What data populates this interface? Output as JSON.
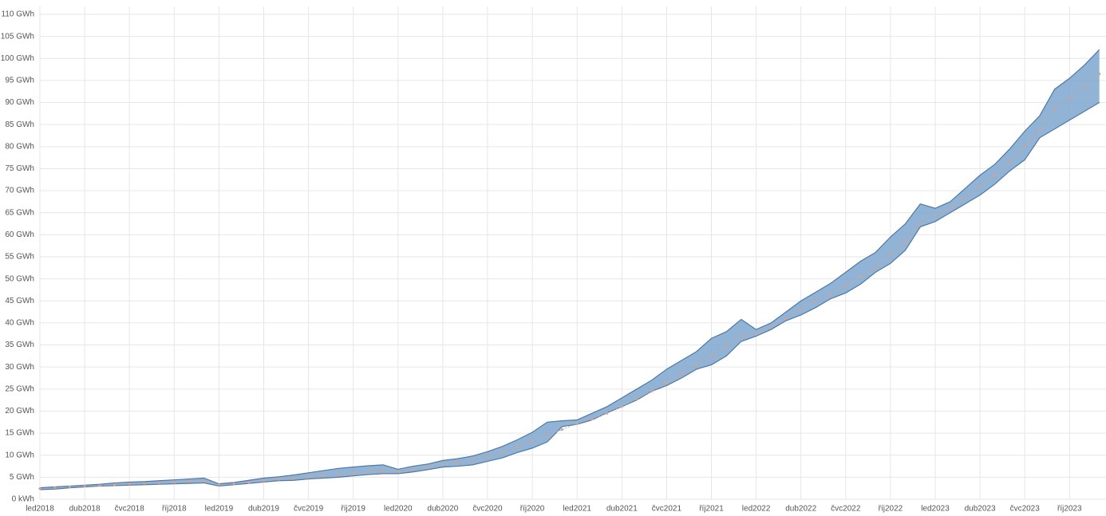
{
  "chart_data": {
    "type": "band",
    "categories": [
      "led2018",
      null,
      null,
      "dub2018",
      null,
      null,
      "čvc2018",
      null,
      null,
      "říj2018",
      null,
      null,
      "led2019",
      null,
      null,
      "dub2019",
      null,
      null,
      "čvc2019",
      null,
      null,
      "říj2019",
      null,
      null,
      "led2020",
      null,
      null,
      "dub2020",
      null,
      null,
      "čvc2020",
      null,
      null,
      "říj2020",
      null,
      null,
      "led2021",
      null,
      null,
      "dub2021",
      null,
      null,
      "čvc2021",
      null,
      null,
      "říj2021",
      null,
      null,
      "led2022",
      null,
      null,
      "dub2022",
      null,
      null,
      "čvc2022",
      null,
      null,
      "říj2022",
      null,
      null,
      "led2023",
      null,
      null,
      "dub2023",
      null,
      null,
      "čvc2023",
      null,
      null,
      "říj2023",
      null,
      null
    ],
    "band": {
      "color": "#7ea6cf",
      "edge_color": "#4f79a3",
      "upper": [
        2.6,
        2.8,
        3.0,
        3.2,
        3.4,
        3.7,
        3.9,
        4.0,
        4.2,
        4.4,
        4.6,
        4.8,
        3.5,
        3.8,
        4.3,
        4.8,
        5.1,
        5.5,
        6.0,
        6.5,
        7.0,
        7.3,
        7.6,
        7.8,
        6.8,
        7.5,
        8.0,
        8.8,
        9.2,
        9.8,
        10.8,
        12.0,
        13.5,
        15.2,
        17.5,
        17.8,
        18.0,
        19.5,
        21.0,
        23.0,
        25.0,
        27.0,
        29.5,
        31.5,
        33.5,
        36.5,
        38.0,
        40.8,
        38.5,
        40.0,
        42.5,
        45.0,
        47.0,
        49.0,
        51.5,
        54.0,
        56.0,
        59.5,
        62.5,
        67.0,
        66.0,
        67.5,
        70.5,
        73.5,
        76.0,
        79.5,
        83.5,
        87.0,
        93.0,
        95.5,
        98.5,
        102.0
      ],
      "lower": [
        2.2,
        2.3,
        2.6,
        2.8,
        3.0,
        3.1,
        3.2,
        3.3,
        3.4,
        3.5,
        3.6,
        3.7,
        3.0,
        3.3,
        3.6,
        3.9,
        4.2,
        4.3,
        4.6,
        4.8,
        5.0,
        5.3,
        5.6,
        5.8,
        5.8,
        6.2,
        6.7,
        7.3,
        7.5,
        7.8,
        8.6,
        9.4,
        10.6,
        11.6,
        13.0,
        16.5,
        17.0,
        18.0,
        19.6,
        21.0,
        22.5,
        24.5,
        25.8,
        27.5,
        29.5,
        30.5,
        32.5,
        35.8,
        37.0,
        38.5,
        40.5,
        41.8,
        43.5,
        45.5,
        46.8,
        48.8,
        51.5,
        53.5,
        56.5,
        61.8,
        63.0,
        65.0,
        67.0,
        69.0,
        71.5,
        74.5,
        77.0,
        82.0,
        84.0,
        86.0,
        88.0,
        90.0
      ]
    },
    "line": {
      "color": "#c9a59a",
      "values": [
        2.4,
        2.6,
        2.8,
        3.0,
        3.1,
        3.3,
        3.5,
        3.6,
        3.7,
        3.8,
        4.0,
        4.1,
        3.3,
        3.5,
        3.8,
        4.2,
        4.5,
        4.7,
        5.0,
        5.3,
        5.6,
        5.9,
        6.2,
        6.4,
        6.3,
        6.8,
        7.3,
        8.0,
        8.3,
        8.8,
        9.6,
        10.6,
        11.8,
        13.2,
        14.5,
        15.8,
        17.2,
        18.2,
        19.5,
        21.0,
        22.8,
        24.5,
        26.5,
        28.5,
        30.5,
        32.5,
        34.5,
        37.0,
        37.5,
        39.0,
        41.0,
        43.0,
        45.0,
        46.5,
        48.5,
        50.5,
        52.5,
        55.5,
        58.5,
        62.5,
        64.5,
        66.0,
        68.5,
        71.0,
        73.5,
        76.5,
        80.0,
        83.5,
        88.5,
        91.0,
        93.5,
        96.5
      ]
    },
    "ylim": [
      0,
      110
    ],
    "yticks": [
      {
        "value": 0,
        "label": "0 kWh"
      },
      {
        "value": 5,
        "label": "5 GWh"
      },
      {
        "value": 10,
        "label": "10 GWh"
      },
      {
        "value": 15,
        "label": "15 GWh"
      },
      {
        "value": 20,
        "label": "20 GWh"
      },
      {
        "value": 25,
        "label": "25 GWh"
      },
      {
        "value": 30,
        "label": "30 GWh"
      },
      {
        "value": 35,
        "label": "35 GWh"
      },
      {
        "value": 40,
        "label": "40 GWh"
      },
      {
        "value": 45,
        "label": "45 GWh"
      },
      {
        "value": 50,
        "label": "50 GWh"
      },
      {
        "value": 55,
        "label": "55 GWh"
      },
      {
        "value": 60,
        "label": "60 GWh"
      },
      {
        "value": 65,
        "label": "65 GWh"
      },
      {
        "value": 70,
        "label": "70 GWh"
      },
      {
        "value": 75,
        "label": "75 GWh"
      },
      {
        "value": 80,
        "label": "80 GWh"
      },
      {
        "value": 85,
        "label": "85 GWh"
      },
      {
        "value": 90,
        "label": "90 GWh"
      },
      {
        "value": 95,
        "label": "95 GWh"
      },
      {
        "value": 100,
        "label": "100 GWh"
      },
      {
        "value": 105,
        "label": "105 GWh"
      },
      {
        "value": 110,
        "label": "110 GWh"
      }
    ],
    "grid": true
  }
}
